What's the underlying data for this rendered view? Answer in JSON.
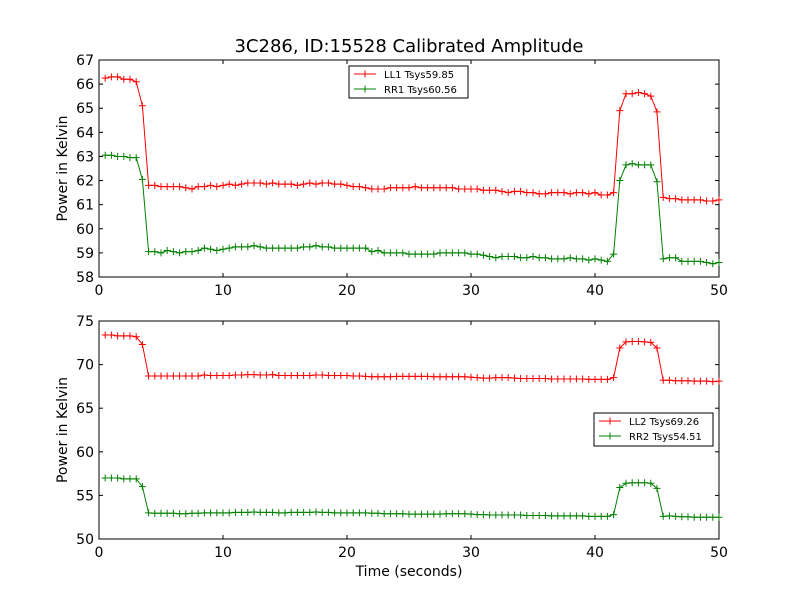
{
  "chart_data": [
    {
      "type": "line",
      "title": "3C286, ID:15528 Calibrated Amplitude",
      "xlabel": "",
      "ylabel": "Power in Kelvin",
      "xlim": [
        0,
        50
      ],
      "ylim": [
        58,
        67
      ],
      "xticks": [
        "0",
        "10",
        "20",
        "30",
        "40",
        "50"
      ],
      "yticks": [
        "58",
        "59",
        "60",
        "61",
        "62",
        "63",
        "64",
        "65",
        "66",
        "67"
      ],
      "legend_position": "top-center",
      "grid": false,
      "series": [
        {
          "name": "LL1 Tsys59.85",
          "color": "#ff0000",
          "x": [
            0.5,
            1.0,
            1.5,
            2.0,
            2.5,
            3.0,
            3.5,
            4.0,
            4.5,
            5.0,
            5.5,
            6.0,
            6.5,
            7.0,
            7.5,
            8.0,
            8.5,
            9.0,
            9.5,
            10.0,
            10.5,
            11.0,
            11.5,
            12.0,
            12.5,
            13.0,
            13.5,
            14.0,
            14.5,
            15.0,
            15.5,
            16.0,
            16.5,
            17.0,
            17.5,
            18.0,
            18.5,
            19.0,
            19.5,
            20.0,
            20.5,
            21.0,
            21.5,
            22.0,
            22.5,
            23.0,
            23.5,
            24.0,
            24.5,
            25.0,
            25.5,
            26.0,
            26.5,
            27.0,
            27.5,
            28.0,
            28.5,
            29.0,
            29.5,
            30.0,
            30.5,
            31.0,
            31.5,
            32.0,
            32.5,
            33.0,
            33.5,
            34.0,
            34.5,
            35.0,
            35.5,
            36.0,
            36.5,
            37.0,
            37.5,
            38.0,
            38.5,
            39.0,
            39.5,
            40.0,
            40.5,
            41.0,
            41.5,
            42.0,
            42.5,
            43.0,
            43.5,
            44.0,
            44.5,
            45.0,
            45.5,
            46.0,
            46.5,
            47.0,
            47.5,
            48.0,
            48.5,
            49.0,
            49.5,
            50.0
          ],
          "values": [
            66.25,
            66.3,
            66.3,
            66.2,
            66.2,
            66.1,
            65.1,
            61.8,
            61.8,
            61.75,
            61.75,
            61.75,
            61.75,
            61.7,
            61.65,
            61.75,
            61.75,
            61.8,
            61.75,
            61.8,
            61.85,
            61.8,
            61.85,
            61.9,
            61.9,
            61.9,
            61.85,
            61.9,
            61.85,
            61.85,
            61.85,
            61.8,
            61.85,
            61.9,
            61.85,
            61.9,
            61.9,
            61.85,
            61.85,
            61.8,
            61.75,
            61.75,
            61.7,
            61.65,
            61.65,
            61.65,
            61.7,
            61.7,
            61.7,
            61.7,
            61.75,
            61.7,
            61.7,
            61.7,
            61.7,
            61.7,
            61.7,
            61.65,
            61.65,
            61.65,
            61.65,
            61.6,
            61.6,
            61.6,
            61.55,
            61.5,
            61.55,
            61.55,
            61.5,
            61.5,
            61.45,
            61.45,
            61.5,
            61.5,
            61.5,
            61.45,
            61.5,
            61.5,
            61.45,
            61.5,
            61.4,
            61.4,
            61.5,
            64.9,
            65.6,
            65.6,
            65.65,
            65.6,
            65.5,
            64.85,
            61.3,
            61.25,
            61.25,
            61.2,
            61.2,
            61.2,
            61.2,
            61.15,
            61.15,
            61.2
          ]
        },
        {
          "name": "RR1 Tsys60.56",
          "color": "#008000",
          "x": [
            0.5,
            1.0,
            1.5,
            2.0,
            2.5,
            3.0,
            3.5,
            4.0,
            4.5,
            5.0,
            5.5,
            6.0,
            6.5,
            7.0,
            7.5,
            8.0,
            8.5,
            9.0,
            9.5,
            10.0,
            10.5,
            11.0,
            11.5,
            12.0,
            12.5,
            13.0,
            13.5,
            14.0,
            14.5,
            15.0,
            15.5,
            16.0,
            16.5,
            17.0,
            17.5,
            18.0,
            18.5,
            19.0,
            19.5,
            20.0,
            20.5,
            21.0,
            21.5,
            22.0,
            22.5,
            23.0,
            23.5,
            24.0,
            24.5,
            25.0,
            25.5,
            26.0,
            26.5,
            27.0,
            27.5,
            28.0,
            28.5,
            29.0,
            29.5,
            30.0,
            30.5,
            31.0,
            31.5,
            32.0,
            32.5,
            33.0,
            33.5,
            34.0,
            34.5,
            35.0,
            35.5,
            36.0,
            36.5,
            37.0,
            37.5,
            38.0,
            38.5,
            39.0,
            39.5,
            40.0,
            40.5,
            41.0,
            41.5,
            42.0,
            42.5,
            43.0,
            43.5,
            44.0,
            44.5,
            45.0,
            45.5,
            46.0,
            46.5,
            47.0,
            47.5,
            48.0,
            48.5,
            49.0,
            49.5,
            50.0
          ],
          "values": [
            63.05,
            63.05,
            63.0,
            63.0,
            62.95,
            62.95,
            62.05,
            59.05,
            59.05,
            59.0,
            59.1,
            59.05,
            59.0,
            59.05,
            59.05,
            59.1,
            59.2,
            59.15,
            59.1,
            59.15,
            59.2,
            59.25,
            59.25,
            59.25,
            59.3,
            59.25,
            59.2,
            59.2,
            59.2,
            59.2,
            59.2,
            59.2,
            59.25,
            59.25,
            59.3,
            59.25,
            59.25,
            59.2,
            59.2,
            59.2,
            59.2,
            59.2,
            59.2,
            59.05,
            59.1,
            59.0,
            59.0,
            59.0,
            59.0,
            58.95,
            58.95,
            58.95,
            58.95,
            58.95,
            59.0,
            59.0,
            59.0,
            59.0,
            59.0,
            58.95,
            58.95,
            58.9,
            58.85,
            58.8,
            58.85,
            58.85,
            58.85,
            58.8,
            58.8,
            58.85,
            58.8,
            58.8,
            58.75,
            58.75,
            58.75,
            58.8,
            58.75,
            58.75,
            58.7,
            58.75,
            58.7,
            58.65,
            58.95,
            62.0,
            62.65,
            62.7,
            62.65,
            62.65,
            62.65,
            61.95,
            58.75,
            58.8,
            58.8,
            58.65,
            58.65,
            58.65,
            58.65,
            58.6,
            58.55,
            58.6
          ]
        }
      ]
    },
    {
      "type": "line",
      "title": "",
      "xlabel": "Time (seconds)",
      "ylabel": "Power in Kelvin",
      "xlim": [
        0,
        50
      ],
      "ylim": [
        50,
        75
      ],
      "xticks": [
        "0",
        "10",
        "20",
        "30",
        "40",
        "50"
      ],
      "yticks": [
        "50",
        "55",
        "60",
        "65",
        "70",
        "75"
      ],
      "legend_position": "center-right",
      "grid": false,
      "series": [
        {
          "name": "LL2 Tsys69.26",
          "color": "#ff0000",
          "x": [
            0.5,
            1.0,
            1.5,
            2.0,
            2.5,
            3.0,
            3.5,
            4.0,
            4.5,
            5.0,
            5.5,
            6.0,
            6.5,
            7.0,
            7.5,
            8.0,
            8.5,
            9.0,
            9.5,
            10.0,
            10.5,
            11.0,
            11.5,
            12.0,
            12.5,
            13.0,
            13.5,
            14.0,
            14.5,
            15.0,
            15.5,
            16.0,
            16.5,
            17.0,
            17.5,
            18.0,
            18.5,
            19.0,
            19.5,
            20.0,
            20.5,
            21.0,
            21.5,
            22.0,
            22.5,
            23.0,
            23.5,
            24.0,
            24.5,
            25.0,
            25.5,
            26.0,
            26.5,
            27.0,
            27.5,
            28.0,
            28.5,
            29.0,
            29.5,
            30.0,
            30.5,
            31.0,
            31.5,
            32.0,
            32.5,
            33.0,
            33.5,
            34.0,
            34.5,
            35.0,
            35.5,
            36.0,
            36.5,
            37.0,
            37.5,
            38.0,
            38.5,
            39.0,
            39.5,
            40.0,
            40.5,
            41.0,
            41.5,
            42.0,
            42.5,
            43.0,
            43.5,
            44.0,
            44.5,
            45.0,
            45.5,
            46.0,
            46.5,
            47.0,
            47.5,
            48.0,
            48.5,
            49.0,
            49.5,
            50.0
          ],
          "values": [
            73.4,
            73.4,
            73.3,
            73.3,
            73.3,
            73.2,
            72.3,
            68.7,
            68.7,
            68.7,
            68.7,
            68.7,
            68.7,
            68.7,
            68.7,
            68.7,
            68.8,
            68.75,
            68.75,
            68.75,
            68.75,
            68.8,
            68.8,
            68.85,
            68.85,
            68.8,
            68.8,
            68.85,
            68.75,
            68.75,
            68.75,
            68.75,
            68.75,
            68.75,
            68.8,
            68.8,
            68.75,
            68.75,
            68.75,
            68.75,
            68.7,
            68.7,
            68.65,
            68.6,
            68.6,
            68.6,
            68.6,
            68.65,
            68.65,
            68.65,
            68.65,
            68.65,
            68.65,
            68.6,
            68.6,
            68.6,
            68.6,
            68.6,
            68.6,
            68.55,
            68.5,
            68.45,
            68.45,
            68.5,
            68.5,
            68.5,
            68.45,
            68.4,
            68.4,
            68.4,
            68.4,
            68.4,
            68.35,
            68.35,
            68.35,
            68.35,
            68.35,
            68.35,
            68.3,
            68.3,
            68.3,
            68.3,
            68.5,
            71.9,
            72.6,
            72.65,
            72.65,
            72.6,
            72.55,
            71.9,
            68.2,
            68.2,
            68.15,
            68.15,
            68.15,
            68.1,
            68.1,
            68.1,
            68.05,
            68.1
          ]
        },
        {
          "name": "RR2 Tsys54.51",
          "color": "#008000",
          "x": [
            0.5,
            1.0,
            1.5,
            2.0,
            2.5,
            3.0,
            3.5,
            4.0,
            4.5,
            5.0,
            5.5,
            6.0,
            6.5,
            7.0,
            7.5,
            8.0,
            8.5,
            9.0,
            9.5,
            10.0,
            10.5,
            11.0,
            11.5,
            12.0,
            12.5,
            13.0,
            13.5,
            14.0,
            14.5,
            15.0,
            15.5,
            16.0,
            16.5,
            17.0,
            17.5,
            18.0,
            18.5,
            19.0,
            19.5,
            20.0,
            20.5,
            21.0,
            21.5,
            22.0,
            22.5,
            23.0,
            23.5,
            24.0,
            24.5,
            25.0,
            25.5,
            26.0,
            26.5,
            27.0,
            27.5,
            28.0,
            28.5,
            29.0,
            29.5,
            30.0,
            30.5,
            31.0,
            31.5,
            32.0,
            32.5,
            33.0,
            33.5,
            34.0,
            34.5,
            35.0,
            35.5,
            36.0,
            36.5,
            37.0,
            37.5,
            38.0,
            38.5,
            39.0,
            39.5,
            40.0,
            40.5,
            41.0,
            41.5,
            42.0,
            42.5,
            43.0,
            43.5,
            44.0,
            44.5,
            45.0,
            45.5,
            46.0,
            46.5,
            47.0,
            47.5,
            48.0,
            48.5,
            49.0,
            49.5,
            50.0
          ],
          "values": [
            57.0,
            57.0,
            57.0,
            56.9,
            56.9,
            56.9,
            56.0,
            53.0,
            52.95,
            52.95,
            52.95,
            52.95,
            52.9,
            52.9,
            52.95,
            52.95,
            53.0,
            53.0,
            53.0,
            53.0,
            53.0,
            53.05,
            53.05,
            53.05,
            53.1,
            53.05,
            53.05,
            53.05,
            53.0,
            53.0,
            53.05,
            53.05,
            53.05,
            53.05,
            53.1,
            53.05,
            53.05,
            53.0,
            53.0,
            53.0,
            53.0,
            53.0,
            53.0,
            52.95,
            52.95,
            52.9,
            52.9,
            52.9,
            52.9,
            52.85,
            52.85,
            52.85,
            52.85,
            52.85,
            52.85,
            52.9,
            52.9,
            52.9,
            52.9,
            52.85,
            52.8,
            52.8,
            52.75,
            52.75,
            52.75,
            52.75,
            52.75,
            52.75,
            52.7,
            52.7,
            52.7,
            52.7,
            52.65,
            52.65,
            52.65,
            52.65,
            52.65,
            52.65,
            52.6,
            52.6,
            52.6,
            52.6,
            52.8,
            55.9,
            56.4,
            56.45,
            56.45,
            56.45,
            56.4,
            55.8,
            52.6,
            52.65,
            52.6,
            52.55,
            52.55,
            52.5,
            52.5,
            52.5,
            52.5,
            52.5
          ]
        }
      ]
    }
  ]
}
